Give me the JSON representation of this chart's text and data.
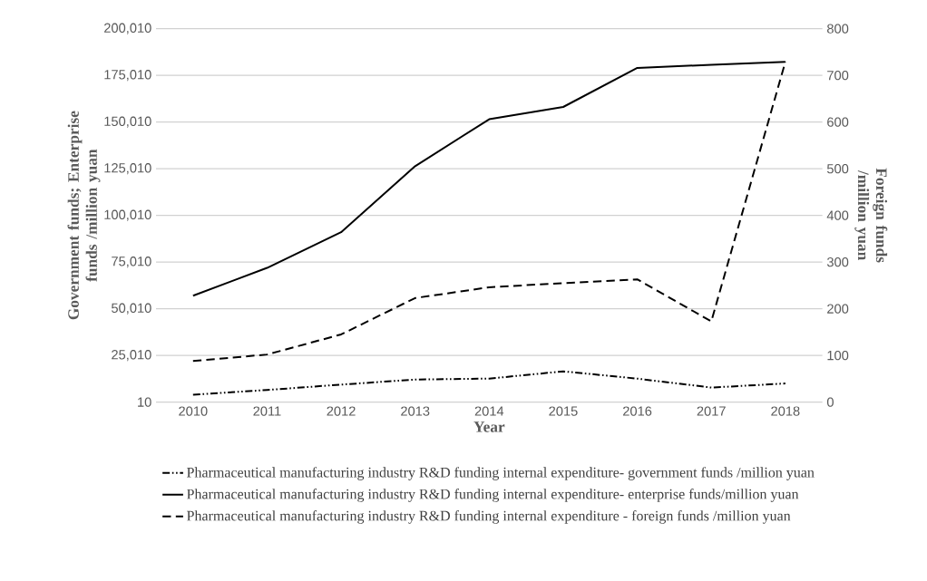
{
  "chart_data": {
    "type": "line",
    "xlabel": "Year",
    "ylabel": "Government funds; Enterprise funds /million yuan",
    "y2label": "Foreign funds /million yuan",
    "categories": [
      "2010",
      "2011",
      "2012",
      "2013",
      "2014",
      "2015",
      "2016",
      "2017",
      "2018"
    ],
    "series": [
      {
        "name": "Pharmaceutical manufacturing industry R&D funding internal expenditure- government funds /million yuan",
        "color": "#000000",
        "line_style": "dashdot",
        "values": [
          4000,
          6500,
          9400,
          12100,
          12600,
          16500,
          12600,
          7800,
          10000
        ]
      },
      {
        "name": "Pharmaceutical manufacturing industry R&D funding internal expenditure- enterprise funds/million yuan",
        "color": "#000000",
        "line_style": "solid",
        "values": [
          57000,
          71900,
          91000,
          126400,
          151500,
          158100,
          179000,
          180700,
          182200
        ]
      },
      {
        "name": "Pharmaceutical manufacturing industry R&D funding internal expenditure - foreign funds /million yuan",
        "color": "#000000",
        "line_style": "dashed",
        "axis": "y2",
        "values": [
          88,
          102,
          145,
          223,
          246,
          255,
          263,
          173,
          729
        ]
      }
    ],
    "ylim": [
      10,
      200010
    ],
    "yticks": [
      10,
      {
        "value": 25010,
        "label": "25,010"
      },
      {
        "value": 50010,
        "label": "50,010"
      },
      {
        "value": 75010,
        "label": "75,010"
      },
      {
        "value": 100010,
        "label": "100,010"
      },
      {
        "value": 125010,
        "label": "125,010"
      },
      {
        "value": 150010,
        "label": "150,010"
      },
      {
        "value": 175010,
        "label": "175,010"
      },
      {
        "value": 200010,
        "label": "200,010"
      }
    ],
    "y2lim": [
      0,
      800
    ],
    "y2ticks": [
      0,
      100,
      200,
      300,
      400,
      500,
      600,
      700,
      800
    ],
    "grid": "y",
    "legend": "bottom",
    "marker": "none"
  }
}
